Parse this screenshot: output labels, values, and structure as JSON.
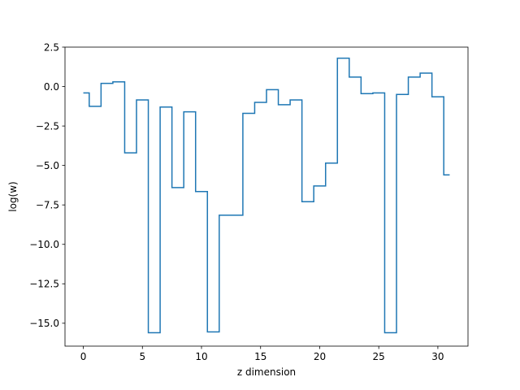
{
  "chart_data": {
    "type": "line",
    "drawstyle": "steps-mid",
    "title": "",
    "xlabel": "z dimension",
    "ylabel": "log(w)",
    "xlim": [
      -1.55,
      32.55
    ],
    "ylim": [
      -16.45,
      2.5
    ],
    "xticks": [
      0,
      5,
      10,
      15,
      20,
      25,
      30
    ],
    "xtick_labels": [
      "0",
      "5",
      "10",
      "15",
      "20",
      "25",
      "30"
    ],
    "yticks": [
      2.5,
      0.0,
      -2.5,
      -5.0,
      -7.5,
      -10.0,
      -12.5,
      -15.0
    ],
    "ytick_labels": [
      "2.5",
      "0.0",
      "−2.5",
      "−5.0",
      "−7.5",
      "−10.0",
      "−12.5",
      "−15.0"
    ],
    "grid": false,
    "legend": false,
    "series": [
      {
        "color": "#1f77b4",
        "x": [
          0,
          1,
          2,
          3,
          4,
          5,
          6,
          7,
          8,
          9,
          10,
          11,
          12,
          13,
          14,
          15,
          16,
          17,
          18,
          19,
          20,
          21,
          22,
          23,
          24,
          25,
          26,
          27,
          28,
          29,
          30,
          31
        ],
        "values": [
          -0.4,
          -1.25,
          0.2,
          0.3,
          -4.2,
          -0.85,
          -15.6,
          -1.3,
          -6.4,
          -1.6,
          -6.65,
          -15.55,
          -8.15,
          -8.15,
          -1.7,
          -1.0,
          -0.2,
          -1.15,
          -0.85,
          -7.3,
          -6.3,
          -4.85,
          1.8,
          0.6,
          -0.45,
          -0.4,
          -15.6,
          -0.5,
          0.6,
          0.85,
          -0.65,
          -5.6
        ]
      }
    ]
  }
}
